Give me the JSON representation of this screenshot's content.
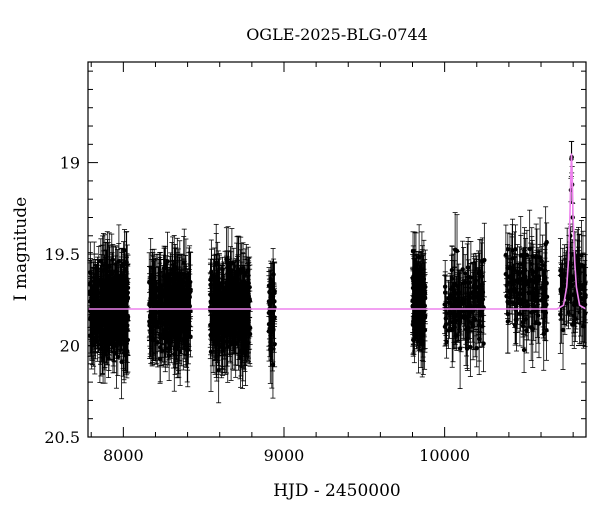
{
  "chart_data": {
    "type": "scatter",
    "title": "OGLE-2025-BLG-0744",
    "xlabel": "HJD - 2450000",
    "ylabel": "I magnitude",
    "xlim": [
      7780,
      10880
    ],
    "ylim": [
      20.5,
      18.45
    ],
    "y_inverted": true,
    "grid": false,
    "legend": "none",
    "x_ticks": [
      8000,
      9000,
      10000
    ],
    "y_ticks": [
      19,
      19.5,
      20,
      20.5
    ],
    "colors": {
      "points": "#000000",
      "model": "#ee82ee"
    },
    "baseline_mag": 19.8,
    "seasons": [
      {
        "x_range": [
          7790,
          8030
        ],
        "y_center": 19.8,
        "n": 380
      },
      {
        "x_range": [
          8160,
          8420
        ],
        "y_center": 19.8,
        "n": 360
      },
      {
        "x_range": [
          8540,
          8790
        ],
        "y_center": 19.8,
        "n": 380
      },
      {
        "x_range": [
          8905,
          8945
        ],
        "y_center": 19.8,
        "n": 40
      },
      {
        "x_range": [
          9800,
          9880
        ],
        "y_center": 19.78,
        "n": 140
      },
      {
        "x_range": [
          10000,
          10250
        ],
        "y_center": 19.75,
        "n": 150
      },
      {
        "x_range": [
          10380,
          10640
        ],
        "y_center": 19.7,
        "n": 150
      },
      {
        "x_range": [
          10720,
          10880
        ],
        "y_center": 19.7,
        "n": 90
      }
    ],
    "model": {
      "name": "",
      "t0": 10790,
      "peak_mag": 18.95,
      "tE": 18,
      "x": [
        7780,
        10700,
        10740,
        10760,
        10770,
        10780,
        10785,
        10790,
        10795,
        10800,
        10810,
        10820,
        10840,
        10880
      ],
      "y": [
        19.8,
        19.8,
        19.78,
        19.68,
        19.55,
        19.3,
        19.1,
        18.95,
        19.1,
        19.3,
        19.55,
        19.68,
        19.78,
        19.8
      ]
    },
    "peak_points": [
      {
        "x": 10782,
        "y": 19.4
      },
      {
        "x": 10786,
        "y": 19.15
      },
      {
        "x": 10789,
        "y": 18.98
      },
      {
        "x": 10791,
        "y": 18.97
      },
      {
        "x": 10794,
        "y": 19.12
      },
      {
        "x": 10797,
        "y": 19.3
      },
      {
        "x": 10804,
        "y": 19.5
      },
      {
        "x": 10812,
        "y": 19.62
      }
    ]
  }
}
